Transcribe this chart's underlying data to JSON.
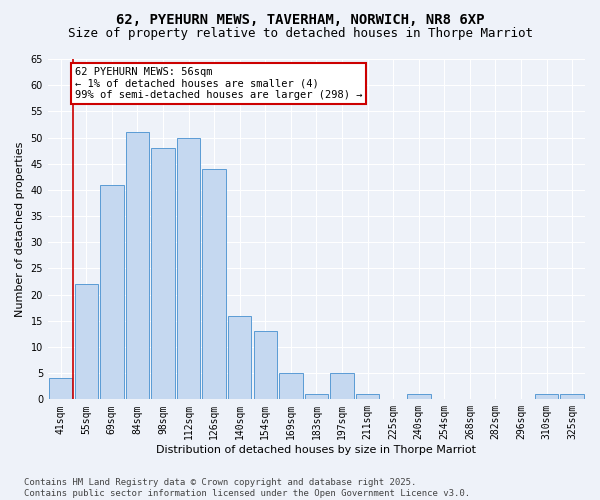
{
  "title_line1": "62, PYEHURN MEWS, TAVERHAM, NORWICH, NR8 6XP",
  "title_line2": "Size of property relative to detached houses in Thorpe Marriot",
  "xlabel": "Distribution of detached houses by size in Thorpe Marriot",
  "ylabel": "Number of detached properties",
  "categories": [
    "41sqm",
    "55sqm",
    "69sqm",
    "84sqm",
    "98sqm",
    "112sqm",
    "126sqm",
    "140sqm",
    "154sqm",
    "169sqm",
    "183sqm",
    "197sqm",
    "211sqm",
    "225sqm",
    "240sqm",
    "254sqm",
    "268sqm",
    "282sqm",
    "296sqm",
    "310sqm",
    "325sqm"
  ],
  "values": [
    4,
    22,
    41,
    51,
    48,
    50,
    44,
    16,
    13,
    5,
    1,
    5,
    1,
    0,
    1,
    0,
    0,
    0,
    0,
    1,
    1
  ],
  "bar_color": "#c5d8f0",
  "bar_edge_color": "#5a9bd5",
  "red_line_index": 1,
  "annotation_text": "62 PYEHURN MEWS: 56sqm\n← 1% of detached houses are smaller (4)\n99% of semi-detached houses are larger (298) →",
  "annotation_box_color": "#ffffff",
  "annotation_box_edge": "#cc0000",
  "ylim": [
    0,
    65
  ],
  "yticks": [
    0,
    5,
    10,
    15,
    20,
    25,
    30,
    35,
    40,
    45,
    50,
    55,
    60,
    65
  ],
  "footer_line1": "Contains HM Land Registry data © Crown copyright and database right 2025.",
  "footer_line2": "Contains public sector information licensed under the Open Government Licence v3.0.",
  "background_color": "#eef2f9",
  "grid_color": "#ffffff",
  "title_fontsize": 10,
  "subtitle_fontsize": 9,
  "axis_label_fontsize": 8,
  "tick_fontsize": 7,
  "annotation_fontsize": 7.5,
  "footer_fontsize": 6.5
}
